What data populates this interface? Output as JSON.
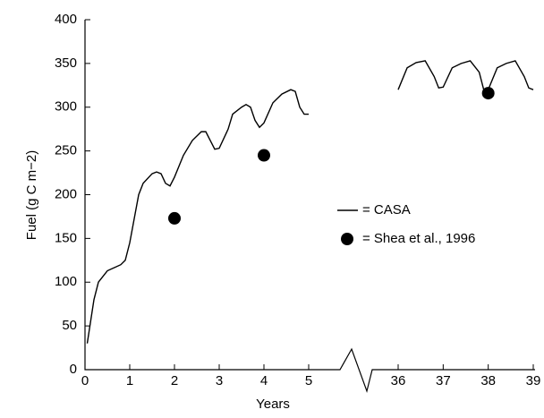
{
  "chart_data": {
    "type": "line",
    "xlabel": "Years",
    "ylabel": "Fuel (g C m−2)",
    "xlim": [
      0,
      39
    ],
    "xticks": [
      0,
      1,
      2,
      3,
      4,
      5,
      36,
      37,
      38,
      39
    ],
    "ylim": [
      0,
      400
    ],
    "yticks": [
      0,
      50,
      100,
      150,
      200,
      250,
      300,
      350,
      400
    ],
    "series": [
      {
        "name": "= CASA",
        "color": "#000000",
        "kind": "line",
        "x": [
          0.05,
          0.2,
          0.3,
          0.5,
          0.8,
          0.9,
          1.0,
          1.2,
          1.3,
          1.5,
          1.6,
          1.7,
          1.8,
          1.9,
          2.0,
          2.2,
          2.4,
          2.6,
          2.7,
          2.8,
          2.9,
          3.0,
          3.2,
          3.3,
          3.5,
          3.6,
          3.7,
          3.8,
          3.9,
          4.0,
          4.2,
          4.4,
          4.6,
          4.7,
          4.8,
          4.9,
          5.0,
          null,
          36.0,
          36.2,
          36.4,
          36.6,
          36.8,
          36.9,
          37.0,
          37.2,
          37.4,
          37.6,
          37.8,
          37.9,
          38.0,
          38.2,
          38.4,
          38.6,
          38.8,
          38.9,
          39.0
        ],
        "values": [
          30,
          80,
          100,
          113,
          120,
          125,
          145,
          200,
          213,
          224,
          226,
          224,
          213,
          210,
          220,
          245,
          262,
          272,
          272,
          262,
          252,
          253,
          275,
          292,
          300,
          303,
          300,
          285,
          277,
          282,
          305,
          315,
          320,
          318,
          300,
          292,
          292,
          null,
          320,
          345,
          351,
          353,
          335,
          322,
          323,
          345,
          350,
          353,
          340,
          320,
          320,
          345,
          350,
          353,
          335,
          322,
          320
        ]
      },
      {
        "name": "= Shea et al., 1996",
        "color": "#000000",
        "kind": "scatter",
        "x": [
          2,
          4,
          38
        ],
        "values": [
          173,
          245,
          316
        ]
      }
    ]
  }
}
